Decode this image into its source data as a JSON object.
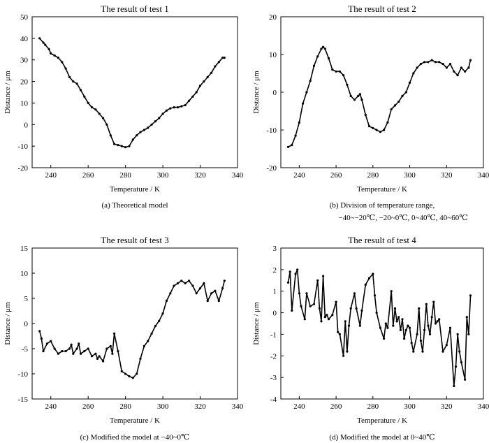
{
  "chart_data": [
    {
      "type": "line",
      "title": "The result of test 1",
      "xlabel": "Temperature / K",
      "ylabel": "Distance / μm",
      "xlim": [
        230,
        340
      ],
      "ylim": [
        -20,
        50
      ],
      "xticks": [
        240,
        260,
        280,
        300,
        320,
        340
      ],
      "yticks": [
        -20,
        -10,
        0,
        10,
        20,
        30,
        40,
        50
      ],
      "caption_lines": [
        "(a) Theoretical model"
      ],
      "series": [
        {
          "name": "test 1",
          "x": [
            234,
            236,
            237,
            239,
            240,
            242,
            244,
            246,
            248,
            250,
            252,
            254,
            256,
            258,
            260,
            262,
            264,
            266,
            268,
            270,
            272,
            274,
            276,
            278,
            280,
            282,
            284,
            286,
            288,
            290,
            292,
            294,
            296,
            298,
            300,
            302,
            304,
            306,
            308,
            310,
            312,
            314,
            316,
            318,
            320,
            322,
            324,
            326,
            328,
            330,
            332,
            333
          ],
          "y": [
            40,
            38,
            37,
            35,
            33,
            32,
            31,
            29,
            26,
            22,
            20,
            19,
            16,
            13,
            10,
            8,
            7,
            5,
            3,
            0,
            -5,
            -9,
            -9.5,
            -10,
            -10.5,
            -10,
            -7,
            -5,
            -3.5,
            -2.5,
            -1.5,
            0,
            1.5,
            3,
            5,
            6.5,
            7.5,
            8,
            8,
            8.5,
            9,
            11,
            13,
            15,
            18,
            20,
            22,
            24,
            27,
            29,
            31,
            31
          ]
        }
      ]
    },
    {
      "type": "line",
      "title": "The result of test 2",
      "xlabel": "Temperature / K",
      "ylabel": "Distance / μm",
      "xlim": [
        230,
        340
      ],
      "ylim": [
        -20,
        20
      ],
      "xticks": [
        240,
        260,
        280,
        300,
        320,
        340
      ],
      "yticks": [
        -20,
        -10,
        0,
        10,
        20
      ],
      "caption_lines": [
        "(b) Division of temperature range,",
        "−40~−20℃, −20~0℃, 0~40℃, 40~60℃"
      ],
      "series": [
        {
          "name": "test 2",
          "x": [
            234,
            236,
            238,
            240,
            242,
            244,
            246,
            248,
            250,
            252,
            253,
            254,
            256,
            258,
            260,
            262,
            264,
            266,
            268,
            270,
            272,
            273,
            274,
            276,
            278,
            280,
            282,
            284,
            286,
            288,
            290,
            292,
            294,
            296,
            298,
            300,
            302,
            304,
            306,
            308,
            310,
            312,
            314,
            316,
            318,
            320,
            322,
            324,
            326,
            328,
            330,
            332,
            333
          ],
          "y": [
            -14.5,
            -14,
            -11.5,
            -8,
            -3,
            0,
            3,
            7,
            9.5,
            11.5,
            12,
            11.5,
            9,
            6,
            5.5,
            5.5,
            4.5,
            2,
            -1,
            -2,
            -1,
            -0.5,
            -2,
            -6,
            -9,
            -9.5,
            -10,
            -10.5,
            -10,
            -8,
            -4.5,
            -3.5,
            -2.5,
            -1,
            0,
            2.5,
            5,
            6.5,
            7.5,
            8,
            8,
            8.5,
            8,
            8,
            7.5,
            6.5,
            7.5,
            5.5,
            4.5,
            6.5,
            5.5,
            6.5,
            8.5
          ]
        }
      ]
    },
    {
      "type": "line",
      "title": "The result of test 3",
      "xlabel": "Temperature / K",
      "ylabel": "Distance / μm",
      "xlim": [
        230,
        340
      ],
      "ylim": [
        -15,
        15
      ],
      "xticks": [
        240,
        260,
        280,
        300,
        320,
        340
      ],
      "yticks": [
        -15,
        -10,
        -5,
        0,
        5,
        10,
        15
      ],
      "caption_lines": [
        "(c) Modified the model at −40~0℃"
      ],
      "series": [
        {
          "name": "test 3",
          "x": [
            234,
            235,
            236,
            238,
            240,
            242,
            244,
            246,
            248,
            250,
            251,
            252,
            254,
            255,
            256,
            258,
            260,
            262,
            264,
            265,
            266,
            268,
            270,
            272,
            273,
            274,
            276,
            278,
            280,
            282,
            284,
            286,
            288,
            290,
            292,
            294,
            296,
            298,
            300,
            302,
            304,
            306,
            308,
            310,
            312,
            314,
            316,
            318,
            320,
            322,
            324,
            326,
            328,
            330,
            332,
            333
          ],
          "y": [
            -1.5,
            -3,
            -5.5,
            -4,
            -3.5,
            -5,
            -6,
            -5.5,
            -5.5,
            -5,
            -4.2,
            -6,
            -5,
            -4,
            -6,
            -5.5,
            -5,
            -6.5,
            -6,
            -7,
            -6.5,
            -7.5,
            -5,
            -4.5,
            -6,
            -2,
            -5.5,
            -9.5,
            -10,
            -10.5,
            -10.8,
            -10,
            -7,
            -4.5,
            -3.5,
            -2,
            -0.5,
            0.5,
            2,
            4.5,
            6,
            7.5,
            8,
            8.5,
            8,
            8.5,
            7.5,
            6,
            7,
            8,
            4.5,
            6,
            6.5,
            4.5,
            7,
            8.5
          ]
        }
      ]
    },
    {
      "type": "line",
      "title": "The result of test 4",
      "xlabel": "Temperature / K",
      "ylabel": "Distance / μm",
      "xlim": [
        230,
        340
      ],
      "ylim": [
        -4,
        3
      ],
      "xticks": [
        240,
        260,
        280,
        300,
        320,
        340
      ],
      "yticks": [
        -4,
        -3,
        -2,
        -1,
        0,
        1,
        2,
        3
      ],
      "caption_lines": [
        "(d) Modified the model at 0~40℃"
      ],
      "series": [
        {
          "name": "test 4",
          "x": [
            234,
            235,
            236,
            238,
            239,
            240,
            241,
            243,
            244,
            246,
            248,
            250,
            251,
            252,
            253,
            254,
            255,
            256,
            258,
            260,
            261,
            262,
            264,
            265,
            266,
            267,
            268,
            270,
            271,
            273,
            274,
            276,
            278,
            280,
            281,
            282,
            284,
            286,
            287,
            288,
            290,
            291,
            292,
            293,
            294,
            295,
            296,
            297,
            298,
            299,
            300,
            301,
            302,
            304,
            305,
            306,
            307,
            308,
            309,
            310,
            311,
            312,
            313,
            314,
            315,
            316,
            318,
            320,
            322,
            324,
            325,
            326,
            327,
            328,
            330,
            331,
            332,
            333
          ],
          "y": [
            1.4,
            1.9,
            0.1,
            1.8,
            2.0,
            0.9,
            0.3,
            -0.3,
            0.9,
            0.3,
            0.4,
            1.5,
            0.2,
            -0.4,
            1.7,
            -0.2,
            -0.1,
            -0.3,
            -0.1,
            0.5,
            -0.9,
            -1.0,
            -2.0,
            -0.4,
            -1.8,
            -0.6,
            0.2,
            0.9,
            0.2,
            -0.6,
            0.1,
            1.3,
            1.6,
            1.8,
            0.8,
            0.0,
            -0.7,
            -1.2,
            -0.5,
            -0.7,
            1.0,
            -0.6,
            0.2,
            -0.4,
            -0.2,
            -0.8,
            -0.3,
            -1.2,
            -0.8,
            -0.6,
            -0.7,
            -1.4,
            -1.8,
            -1.0,
            0.2,
            -1.3,
            -1.8,
            -0.8,
            0.4,
            -0.6,
            -1.0,
            -0.2,
            0.5,
            -0.5,
            -0.4,
            -0.3,
            -1.8,
            -1.5,
            -0.7,
            -3.4,
            -2.5,
            -1.0,
            -1.8,
            -2.3,
            -3.1,
            -0.2,
            -1.0,
            0.8
          ]
        }
      ]
    }
  ]
}
